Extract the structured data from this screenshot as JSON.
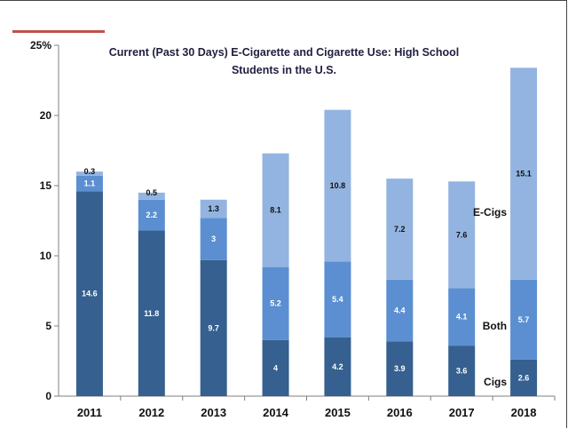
{
  "chart_data": {
    "type": "bar",
    "stacked": true,
    "title_line1": "Current (Past 30 Days) E-Cigarette and Cigarette Use: High School",
    "title_line2": "Students in the U.S.",
    "categories": [
      "2011",
      "2012",
      "2013",
      "2014",
      "2015",
      "2016",
      "2017",
      "2018"
    ],
    "series": [
      {
        "name": "Cigs",
        "color": "#35608f",
        "label_color": "#ffffff",
        "values": [
          14.6,
          11.8,
          9.7,
          4,
          4.2,
          3.9,
          3.6,
          2.6
        ]
      },
      {
        "name": "Both",
        "color": "#5b8fd1",
        "label_color": "#ffffff",
        "values": [
          1.1,
          2.2,
          3.0,
          5.2,
          5.4,
          4.4,
          4.1,
          5.7
        ]
      },
      {
        "name": "E-Cigs",
        "color": "#93b4e1",
        "label_color": "#111111",
        "values": [
          0.3,
          0.5,
          1.3,
          8.1,
          10.8,
          7.2,
          7.6,
          15.1
        ]
      }
    ],
    "yticks": [
      "0",
      "5",
      "10",
      "15",
      "20",
      "25%"
    ],
    "ylim": [
      0,
      25
    ],
    "grid": false,
    "legend": "inline labels beside 2018 bar"
  }
}
